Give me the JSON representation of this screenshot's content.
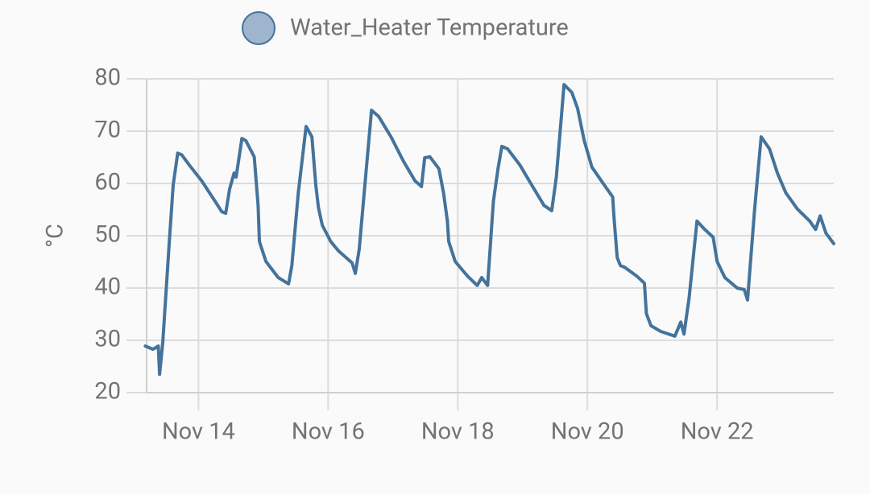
{
  "chart_data": {
    "type": "line",
    "ylabel": "°C",
    "x": [
      13.18,
      13.3,
      13.38,
      13.4,
      13.45,
      13.55,
      13.61,
      13.68,
      13.74,
      13.86,
      14.05,
      14.24,
      14.36,
      14.42,
      14.48,
      14.55,
      14.58,
      14.67,
      14.73,
      14.86,
      14.92,
      14.94,
      15.04,
      15.23,
      15.39,
      15.44,
      15.54,
      15.66,
      15.75,
      15.81,
      15.85,
      15.91,
      16.04,
      16.16,
      16.37,
      16.42,
      16.48,
      16.6,
      16.67,
      16.78,
      16.97,
      17.16,
      17.34,
      17.44,
      17.49,
      17.57,
      17.71,
      17.78,
      17.84,
      17.86,
      17.96,
      18.15,
      18.3,
      18.37,
      18.46,
      18.55,
      18.62,
      18.68,
      18.77,
      18.96,
      19.14,
      19.33,
      19.45,
      19.52,
      19.64,
      19.76,
      19.85,
      19.95,
      20.07,
      20.26,
      20.39,
      20.41,
      20.46,
      20.51,
      20.57,
      20.76,
      20.88,
      20.91,
      20.98,
      21.13,
      21.35,
      21.44,
      21.49,
      21.57,
      21.69,
      21.81,
      21.94,
      22.0,
      22.12,
      22.31,
      22.42,
      22.47,
      22.58,
      22.68,
      22.81,
      22.93,
      23.06,
      23.24,
      23.43,
      23.52,
      23.59,
      23.68,
      23.8
    ],
    "series": [
      {
        "name": "Water_Heater Temperature",
        "color": "#44739b",
        "fill": "#9fb5ce",
        "values": [
          28.9,
          28.3,
          28.9,
          23.5,
          29.7,
          48.9,
          59.7,
          65.8,
          65.5,
          63.5,
          60.5,
          56.9,
          54.6,
          54.3,
          58.9,
          62.0,
          61.2,
          68.6,
          68.2,
          65.1,
          55.8,
          48.9,
          45.1,
          42.0,
          40.8,
          44.3,
          58.2,
          70.9,
          68.9,
          59.7,
          55.4,
          52.0,
          48.9,
          47.1,
          44.8,
          42.8,
          47.4,
          64.3,
          74.0,
          72.8,
          68.9,
          64.3,
          60.5,
          59.4,
          64.9,
          65.1,
          62.8,
          58.2,
          52.8,
          48.9,
          45.1,
          42.3,
          40.5,
          42.0,
          40.5,
          56.6,
          62.8,
          67.1,
          66.6,
          63.5,
          59.7,
          55.8,
          54.8,
          61.2,
          78.9,
          77.4,
          74.3,
          68.2,
          63.1,
          59.7,
          57.4,
          53.5,
          45.8,
          44.3,
          44.0,
          42.3,
          40.9,
          35.1,
          32.8,
          31.7,
          30.8,
          33.5,
          31.2,
          38.2,
          52.8,
          51.2,
          49.7,
          45.1,
          42.0,
          40.0,
          39.7,
          37.7,
          55.1,
          68.9,
          66.6,
          62.0,
          58.2,
          55.1,
          52.8,
          51.2,
          53.8,
          50.5,
          48.5
        ]
      }
    ],
    "xlim": [
      13.2,
      23.8
    ],
    "xticks": [
      {
        "value": 14,
        "label": "Nov 14"
      },
      {
        "value": 16,
        "label": "Nov 16"
      },
      {
        "value": 18,
        "label": "Nov 18"
      },
      {
        "value": 20,
        "label": "Nov 20"
      },
      {
        "value": 22,
        "label": "Nov 22"
      }
    ],
    "ylim": [
      20,
      80
    ],
    "yticks": [
      20,
      30,
      40,
      50,
      60,
      70,
      80
    ],
    "grid": true
  }
}
